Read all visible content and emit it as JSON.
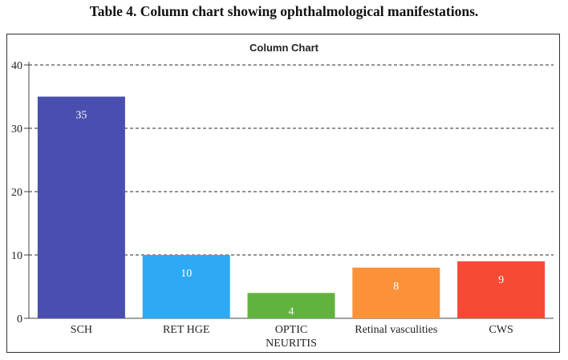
{
  "caption": "Table 4. Column chart showing ophthalmological manifestations.",
  "chart_data": {
    "type": "bar",
    "title": "Column Chart",
    "categories": [
      "SCH",
      "RET HGE",
      "OPTIC NEURITIS",
      "Retinal vasculities",
      "CWS"
    ],
    "category_lines": [
      [
        "SCH"
      ],
      [
        "RET HGE"
      ],
      [
        "OPTIC",
        "NEURITIS"
      ],
      [
        "Retinal vasculities"
      ],
      [
        "CWS"
      ]
    ],
    "values": [
      35,
      10,
      4,
      8,
      9
    ],
    "colors": [
      "#4a4faf",
      "#2eaaf5",
      "#62b23f",
      "#fb923a",
      "#f74a35"
    ],
    "ylim": [
      0,
      40
    ],
    "yticks": [
      0,
      10,
      20,
      30,
      40
    ],
    "xlabel": "",
    "ylabel": "",
    "grid": "dashed horizontal",
    "legend": "none"
  }
}
